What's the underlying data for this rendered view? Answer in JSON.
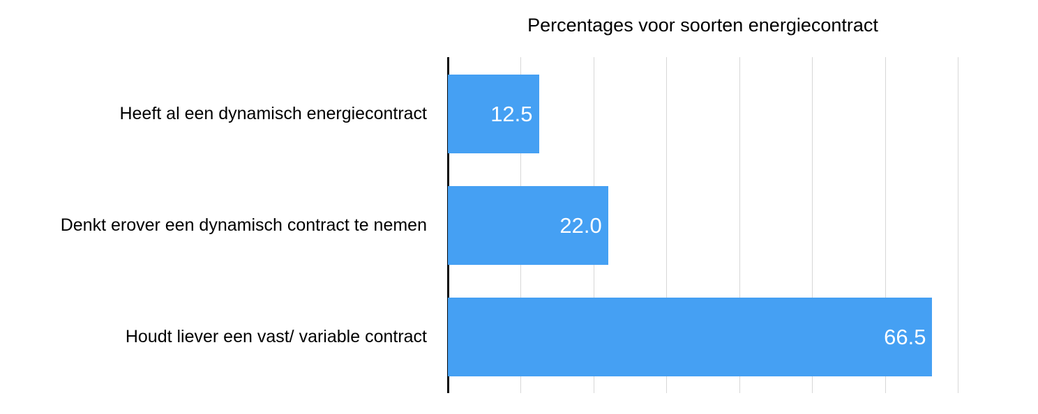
{
  "chart_data": {
    "type": "bar",
    "orientation": "horizontal",
    "title": "Percentages voor soorten energiecontract",
    "categories": [
      "Heeft al een dynamisch energiecontract",
      "Denkt erover een dynamisch contract te nemen",
      "Houdt liever een vast/ variable contract"
    ],
    "values": [
      12.5,
      22.0,
      66.5
    ],
    "value_labels": [
      "12.5",
      "22.0",
      "66.5"
    ],
    "xlabel": "",
    "ylabel": "",
    "xlim": [
      0,
      70
    ],
    "gridline_step": 10,
    "grid": true,
    "x_tick_labels_shown": false,
    "legend_shown": false,
    "value_label_position": "inside-end",
    "colors": {
      "bar": "#45a0f3",
      "value_label": "#ffffff",
      "gridline": "#d7d7d7",
      "axis": "#0a0a0a",
      "title": "#000000",
      "category_label": "#000000",
      "background": "#ffffff"
    }
  }
}
